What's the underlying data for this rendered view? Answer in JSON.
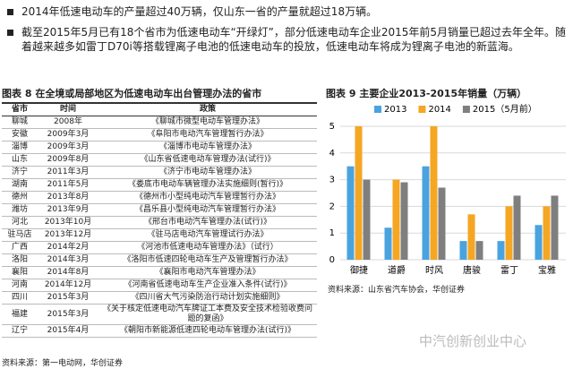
{
  "bullets": [
    "2014年低速电动车的产量超过40万辆，仅山东一省的产量就超过18万辆。",
    "截至2015年5月已有18个省市为低速电动车“开绿灯”，部分低速电动车企业2015年前5月销量已超过去年全年。随着越来越多如雷丁D70i等搭载锂离子电池的低速电动车的投放，低速电动车将成为锂离子电池的新蓝海。"
  ],
  "table": {
    "title": "图表 8 在全境或局部地区为低速电动车出台管理办法的省市",
    "header": [
      "省市",
      "时间",
      "政策"
    ],
    "rows": [
      [
        "聊城",
        "2008年",
        "《聊城市微型电动车管理办法》"
      ],
      [
        "安徽",
        "2009年3月",
        "《阜阳市电动汽车管理暂行办法》"
      ],
      [
        "淄博",
        "2009年3月",
        "《淄博市电动车管理办法》"
      ],
      [
        "山东",
        "2009年8月",
        "《山东省低速电动车管理办法(试行)》"
      ],
      [
        "济宁",
        "2011年3月",
        "《济宁市电动车管理办法》"
      ],
      [
        "湖南",
        "2011年5月",
        "《娄底市电动车辆管理办法实施细则(暂行)》"
      ],
      [
        "德州",
        "2013年8月",
        "《德州市小型纯电动汽车管理暂行办法》"
      ],
      [
        "潍坊",
        "2013年9月",
        "《昌乐县小型纯电动汽车管理暂行办法》"
      ],
      [
        "河北",
        "2013年10月",
        "《邢台市电动汽车管理办法(试行)》"
      ],
      [
        "驻马店",
        "2013年12月",
        "《驻马店电动汽车管理试行办法》"
      ],
      [
        "广西",
        "2014年2月",
        "《河池市低速电动车管理办法》（试行）"
      ],
      [
        "洛阳",
        "2014年3月",
        "《洛阳市低速四轮电动车生产及管理暂行办法》"
      ],
      [
        "襄阳",
        "2014年8月",
        "《襄阳市电动汽车管理办法》"
      ],
      [
        "河南",
        "2014年12月",
        "《河南省低速电动车生产企业准入条件(试行)》"
      ],
      [
        "四川",
        "2015年3月",
        "《四川省大气污染防治行动计划实施细则》"
      ],
      [
        "福建",
        "2015年3月",
        "《关于核定低速电动汽车牌证工本费及安全技术检验收费问题的复函》"
      ],
      [
        "辽宁",
        "2015年4月",
        "《朝阳市新能源低速四轮电动车管理办法(试行)》"
      ]
    ],
    "source": "资料来源：第一电动网，华创证券"
  },
  "chart_data": {
    "type": "bar",
    "title": "图表 9 主要企业2013-2015年销量（万辆）",
    "categories": [
      "御捷",
      "道爵",
      "时风",
      "唐骏",
      "雷丁",
      "宝雅"
    ],
    "series": [
      {
        "name": "2013",
        "color": "#4aa3df",
        "values": [
          3.5,
          1.2,
          3.5,
          0.7,
          0.7,
          1.3
        ]
      },
      {
        "name": "2014",
        "color": "#f5a623",
        "values": [
          5.0,
          3.0,
          5.0,
          1.7,
          2.0,
          2.0
        ]
      },
      {
        "name": "2015（5月前）",
        "color": "#7f7f7f",
        "values": [
          3.0,
          2.9,
          2.7,
          0.7,
          2.4,
          2.4
        ]
      }
    ],
    "ylim": [
      0,
      5.3
    ],
    "yticks": [
      0,
      1,
      2,
      3,
      4,
      5
    ],
    "grid": true,
    "legend": "top",
    "source": "资料来源：山东省汽车协会，华创证券"
  },
  "watermark": "中汽创新创业中心"
}
